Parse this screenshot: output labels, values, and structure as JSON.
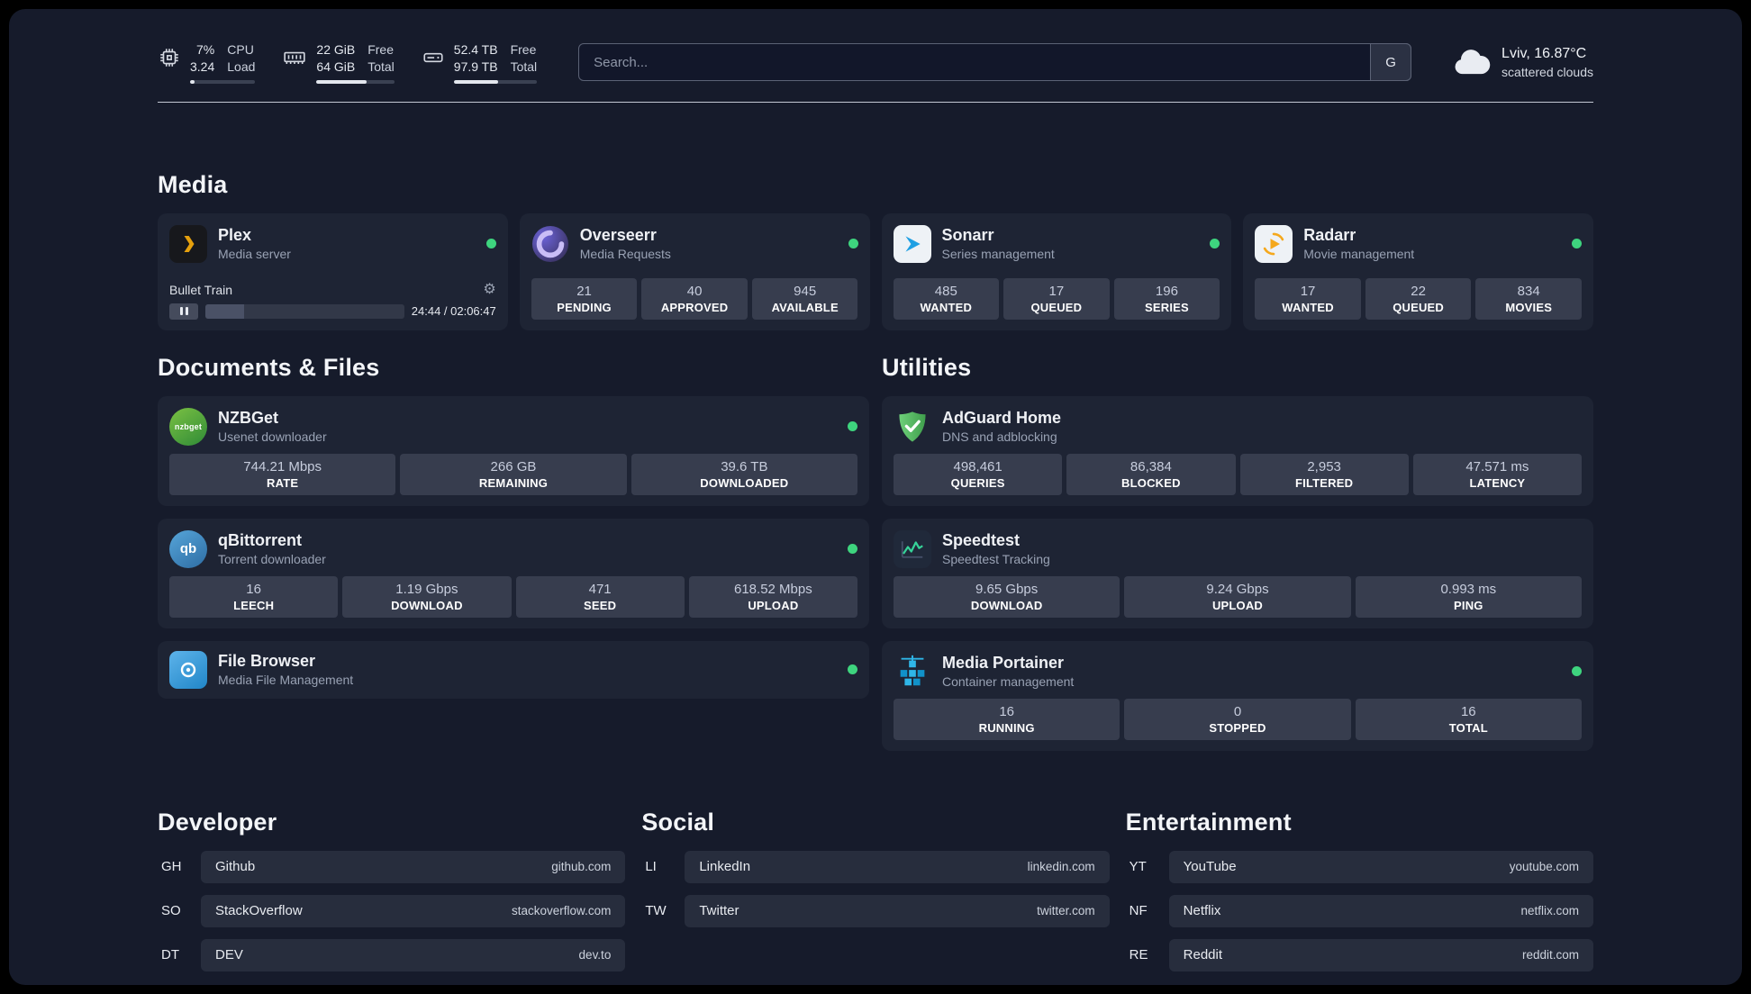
{
  "colors": {
    "status_online": "#3ed47e",
    "plex_accent": "#e5a00d",
    "page_bg": "#161b2b",
    "card_bg": "#1e2434"
  },
  "topbar": {
    "cpu": {
      "value_top": "7%",
      "value_bottom": "3.24",
      "label_top": "CPU",
      "label_bottom": "Load",
      "progress": 7
    },
    "ram": {
      "value_top": "22 GiB",
      "value_bottom": "64 GiB",
      "label_top": "Free",
      "label_bottom": "Total",
      "progress": 64
    },
    "disk": {
      "value_top": "52.4 TB",
      "value_bottom": "97.9 TB",
      "label_top": "Free",
      "label_bottom": "Total",
      "progress": 53
    },
    "search": {
      "placeholder": "Search...",
      "engine_label": "G"
    },
    "weather": {
      "location": "Lviv, 16.87°C",
      "condition": "scattered clouds"
    }
  },
  "sections": {
    "media": {
      "title": "Media",
      "plex": {
        "name": "Plex",
        "subtitle": "Media server",
        "now_playing": "Bullet Train",
        "time": "24:44 / 02:06:47",
        "progress": 19.5
      },
      "overseerr": {
        "name": "Overseerr",
        "subtitle": "Media Requests",
        "stats": [
          {
            "value": "21",
            "label": "PENDING"
          },
          {
            "value": "40",
            "label": "APPROVED"
          },
          {
            "value": "945",
            "label": "AVAILABLE"
          }
        ]
      },
      "sonarr": {
        "name": "Sonarr",
        "subtitle": "Series management",
        "stats": [
          {
            "value": "485",
            "label": "WANTED"
          },
          {
            "value": "17",
            "label": "QUEUED"
          },
          {
            "value": "196",
            "label": "SERIES"
          }
        ]
      },
      "radarr": {
        "name": "Radarr",
        "subtitle": "Movie management",
        "stats": [
          {
            "value": "17",
            "label": "WANTED"
          },
          {
            "value": "22",
            "label": "QUEUED"
          },
          {
            "value": "834",
            "label": "MOVIES"
          }
        ]
      }
    },
    "documents": {
      "title": "Documents & Files",
      "nzbget": {
        "name": "NZBGet",
        "subtitle": "Usenet downloader",
        "icon_text": "nzbget",
        "stats": [
          {
            "value": "744.21 Mbps",
            "label": "RATE"
          },
          {
            "value": "266 GB",
            "label": "REMAINING"
          },
          {
            "value": "39.6 TB",
            "label": "DOWNLOADED"
          }
        ]
      },
      "qbittorrent": {
        "name": "qBittorrent",
        "subtitle": "Torrent downloader",
        "icon_text": "qb",
        "stats": [
          {
            "value": "16",
            "label": "LEECH"
          },
          {
            "value": "1.19 Gbps",
            "label": "DOWNLOAD"
          },
          {
            "value": "471",
            "label": "SEED"
          },
          {
            "value": "618.52 Mbps",
            "label": "UPLOAD"
          }
        ]
      },
      "filebrowser": {
        "name": "File Browser",
        "subtitle": "Media File Management"
      }
    },
    "utilities": {
      "title": "Utilities",
      "adguard": {
        "name": "AdGuard Home",
        "subtitle": "DNS and adblocking",
        "stats": [
          {
            "value": "498,461",
            "label": "QUERIES"
          },
          {
            "value": "86,384",
            "label": "BLOCKED"
          },
          {
            "value": "2,953",
            "label": "FILTERED"
          },
          {
            "value": "47.571 ms",
            "label": "LATENCY"
          }
        ]
      },
      "speedtest": {
        "name": "Speedtest",
        "subtitle": "Speedtest Tracking",
        "stats": [
          {
            "value": "9.65 Gbps",
            "label": "DOWNLOAD"
          },
          {
            "value": "9.24 Gbps",
            "label": "UPLOAD"
          },
          {
            "value": "0.993 ms",
            "label": "PING"
          }
        ]
      },
      "portainer": {
        "name": "Media Portainer",
        "subtitle": "Container management",
        "stats": [
          {
            "value": "16",
            "label": "RUNNING"
          },
          {
            "value": "0",
            "label": "STOPPED"
          },
          {
            "value": "16",
            "label": "TOTAL"
          }
        ]
      }
    },
    "bookmarks": [
      {
        "title": "Developer",
        "items": [
          {
            "abbr": "GH",
            "name": "Github",
            "url": "github.com"
          },
          {
            "abbr": "SO",
            "name": "StackOverflow",
            "url": "stackoverflow.com"
          },
          {
            "abbr": "DT",
            "name": "DEV",
            "url": "dev.to"
          }
        ]
      },
      {
        "title": "Social",
        "items": [
          {
            "abbr": "LI",
            "name": "LinkedIn",
            "url": "linkedin.com"
          },
          {
            "abbr": "TW",
            "name": "Twitter",
            "url": "twitter.com"
          }
        ]
      },
      {
        "title": "Entertainment",
        "items": [
          {
            "abbr": "YT",
            "name": "YouTube",
            "url": "youtube.com"
          },
          {
            "abbr": "NF",
            "name": "Netflix",
            "url": "netflix.com"
          },
          {
            "abbr": "RE",
            "name": "Reddit",
            "url": "reddit.com"
          }
        ]
      }
    ]
  }
}
